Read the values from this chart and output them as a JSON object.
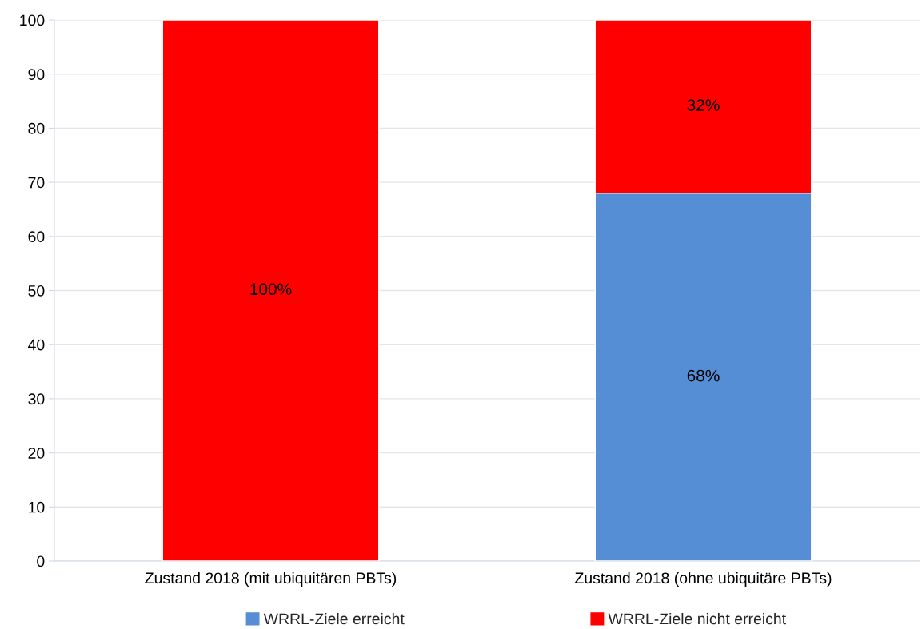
{
  "chart_data": {
    "type": "bar",
    "stacked": true,
    "categories": [
      "Zustand 2018 (mit ubiquitären PBTs)",
      "Zustand 2018 (ohne ubiquitäre PBTs)"
    ],
    "series": [
      {
        "name": "WRRL-Ziele erreicht",
        "color": "#558ed5",
        "values": [
          0,
          68
        ],
        "value_labels": [
          null,
          "68%"
        ]
      },
      {
        "name": "WRRL-Ziele nicht erreicht",
        "color": "#ff0000",
        "values": [
          100,
          32
        ],
        "value_labels": [
          "100%",
          "32%"
        ]
      }
    ],
    "ylim": [
      0,
      100
    ],
    "yticks": [
      0,
      10,
      20,
      30,
      40,
      50,
      60,
      70,
      80,
      90,
      100
    ],
    "grid": "y",
    "legend": "bottom"
  }
}
